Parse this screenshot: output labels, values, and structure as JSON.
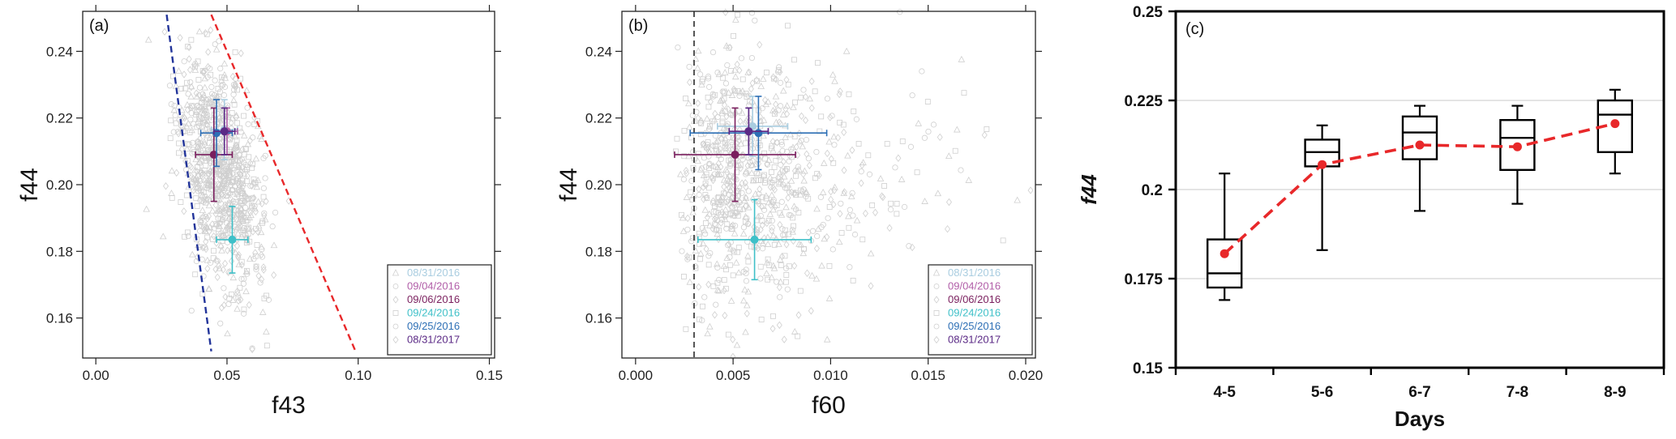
{
  "chart_data": [
    {
      "type": "scatter",
      "panel_label": "(a)",
      "xlabel": "f43",
      "ylabel": "f44",
      "xlim": [
        -0.005,
        0.152
      ],
      "ylim": [
        0.148,
        0.252
      ],
      "xticks": [
        "0.00",
        "0.05",
        "0.10",
        "0.15"
      ],
      "xtick_values": [
        0.0,
        0.05,
        0.1,
        0.15
      ],
      "yticks": [
        "0.16",
        "0.18",
        "0.20",
        "0.22",
        "0.24"
      ],
      "ytick_values": [
        0.16,
        0.18,
        0.2,
        0.22,
        0.24
      ],
      "legend_position": "bottom-right",
      "background_points": "grey open markers",
      "series": [
        {
          "name": "08/31/2016",
          "color": "#a9cde0",
          "x": 0.049,
          "y": 0.2165,
          "xerr": 0.005,
          "yerr": 0.009
        },
        {
          "name": "09/04/2016",
          "color": "#b15ea8",
          "x": 0.05,
          "y": 0.216,
          "xerr": 0.004,
          "yerr": 0.007
        },
        {
          "name": "09/06/2016",
          "color": "#7a1f5e",
          "x": 0.045,
          "y": 0.209,
          "xerr": 0.007,
          "yerr": 0.014
        },
        {
          "name": "09/24/2016",
          "color": "#3fc0c8",
          "x": 0.052,
          "y": 0.1835,
          "xerr": 0.006,
          "yerr": 0.01
        },
        {
          "name": "09/25/2016",
          "color": "#2d6fb5",
          "x": 0.046,
          "y": 0.2155,
          "xerr": 0.006,
          "yerr": 0.01
        },
        {
          "name": "08/31/2017",
          "color": "#5b2a86",
          "x": 0.049,
          "y": 0.216,
          "xerr": 0.004,
          "yerr": 0.007
        }
      ],
      "reference_lines": [
        {
          "color": "#22349a",
          "x1": 0.027,
          "y1": 0.251,
          "x2": 0.044,
          "y2": 0.15
        },
        {
          "color": "#e8282a",
          "x1": 0.044,
          "y1": 0.251,
          "x2": 0.099,
          "y2": 0.15
        }
      ]
    },
    {
      "type": "scatter",
      "panel_label": "(b)",
      "xlabel": "f60",
      "ylabel": "f44",
      "xlim": [
        -0.0007,
        0.0205
      ],
      "ylim": [
        0.148,
        0.252
      ],
      "xticks": [
        "0.000",
        "0.005",
        "0.010",
        "0.015",
        "0.020"
      ],
      "xtick_values": [
        0.0,
        0.005,
        0.01,
        0.015,
        0.02
      ],
      "yticks": [
        "0.16",
        "0.18",
        "0.20",
        "0.22",
        "0.24"
      ],
      "ytick_values": [
        0.16,
        0.18,
        0.2,
        0.22,
        0.24
      ],
      "legend_position": "bottom-right",
      "background_points": "grey open markers",
      "vertical_line": {
        "x": 0.003,
        "color": "#555555"
      },
      "series": [
        {
          "name": "08/31/2016",
          "color": "#a9cde0",
          "x": 0.006,
          "y": 0.2175,
          "xerr": 0.0018,
          "yerr": 0.009
        },
        {
          "name": "09/04/2016",
          "color": "#b15ea8",
          "x": 0.0058,
          "y": 0.216,
          "xerr": 0.001,
          "yerr": 0.007
        },
        {
          "name": "09/06/2016",
          "color": "#7a1f5e",
          "x": 0.0051,
          "y": 0.209,
          "xerr": 0.0031,
          "yerr": 0.014
        },
        {
          "name": "09/24/2016",
          "color": "#3fc0c8",
          "x": 0.0061,
          "y": 0.1835,
          "xerr": 0.0029,
          "yerr": 0.012
        },
        {
          "name": "09/25/2016",
          "color": "#2d6fb5",
          "x": 0.0063,
          "y": 0.2155,
          "xerr": 0.0035,
          "yerr": 0.011
        },
        {
          "name": "08/31/2017",
          "color": "#5b2a86",
          "x": 0.0058,
          "y": 0.216,
          "xerr": 0.001,
          "yerr": 0.007
        }
      ]
    },
    {
      "type": "box",
      "panel_label": "(c)",
      "xlabel": "Days",
      "ylabel": "f44",
      "ylim": [
        0.15,
        0.25
      ],
      "yticks": [
        "0.15",
        "0.175",
        "0.2",
        "0.225",
        "0.25"
      ],
      "ytick_values": [
        0.15,
        0.175,
        0.2,
        0.225,
        0.25
      ],
      "grid": "horizontal",
      "categories": [
        "4-5",
        "5-6",
        "6-7",
        "7-8",
        "8-9"
      ],
      "boxes": [
        {
          "min": 0.169,
          "q1": 0.1725,
          "median": 0.1765,
          "q3": 0.186,
          "max": 0.2045
        },
        {
          "min": 0.183,
          "q1": 0.2065,
          "median": 0.2105,
          "q3": 0.214,
          "max": 0.218
        },
        {
          "min": 0.194,
          "q1": 0.2085,
          "median": 0.216,
          "q3": 0.2205,
          "max": 0.2235
        },
        {
          "min": 0.196,
          "q1": 0.2055,
          "median": 0.2145,
          "q3": 0.2195,
          "max": 0.2235
        },
        {
          "min": 0.2045,
          "q1": 0.2105,
          "median": 0.221,
          "q3": 0.225,
          "max": 0.228
        }
      ],
      "mean_line": {
        "color": "#e8282a",
        "values": [
          0.182,
          0.207,
          0.2125,
          0.212,
          0.2185
        ]
      }
    }
  ]
}
